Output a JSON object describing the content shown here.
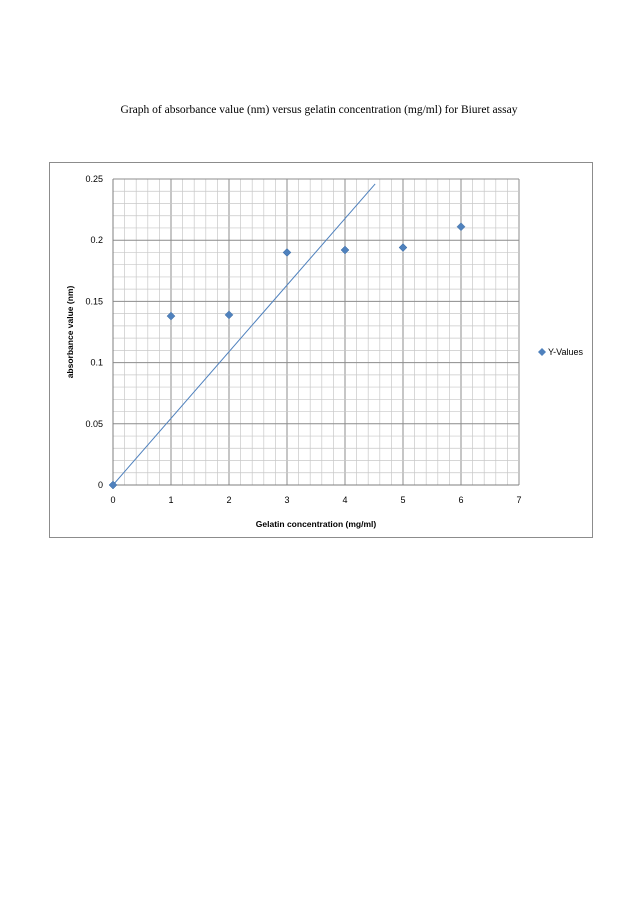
{
  "page": {
    "caption": "Graph of absorbance value (nm) versus gelatin concentration (mg/ml) for Biuret assay"
  },
  "chart_data": {
    "type": "scatter",
    "title": "",
    "xlabel": "Gelatin concentration (mg/ml)",
    "ylabel": "absorbance value (nm)",
    "xlim": [
      0,
      7
    ],
    "ylim": [
      0,
      0.25
    ],
    "x_ticks": [
      "0",
      "1",
      "2",
      "3",
      "4",
      "5",
      "6",
      "7"
    ],
    "y_ticks": [
      "0",
      "0.05",
      "0.1",
      "0.15",
      "0.2",
      "0.25"
    ],
    "grid": true,
    "legend_position": "right",
    "series": [
      {
        "name": "Y-Values",
        "color": "#4f81bd",
        "marker": "diamond",
        "x": [
          0,
          1,
          2,
          3,
          4,
          5,
          6
        ],
        "y": [
          0,
          0.138,
          0.139,
          0.19,
          0.192,
          0.194,
          0.211
        ]
      }
    ],
    "trendline": {
      "color": "#4f81bd",
      "x": [
        0,
        4.52
      ],
      "y": [
        0,
        0.246
      ]
    }
  }
}
